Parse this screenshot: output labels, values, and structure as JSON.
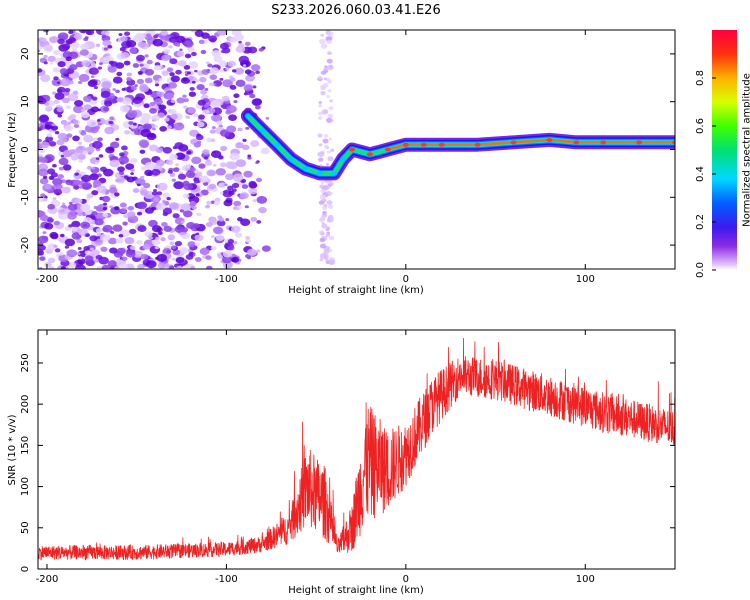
{
  "title": "S233.2026.060.03.41.E26",
  "chart_data": [
    {
      "type": "heatmap",
      "name": "spectrogram",
      "xlabel": "Height of straight line (km)",
      "ylabel": "Frequency (Hz)",
      "xlim": [
        -205,
        150
      ],
      "ylim": [
        -25,
        25
      ],
      "xticks": [
        -200,
        -100,
        0,
        100
      ],
      "yticks": [
        -20,
        -10,
        0,
        10,
        20
      ],
      "colorbar": {
        "label": "Normalized spectral amplitude",
        "range": [
          0,
          1
        ],
        "ticks": [
          0.0,
          0.2,
          0.4,
          0.6,
          0.8
        ]
      },
      "noise_region_km": [
        -205,
        -75
      ],
      "ridge": [
        {
          "x": -88,
          "f": 7
        },
        {
          "x": -80,
          "f": 4
        },
        {
          "x": -72,
          "f": 1
        },
        {
          "x": -64,
          "f": -2
        },
        {
          "x": -56,
          "f": -4
        },
        {
          "x": -48,
          "f": -5
        },
        {
          "x": -40,
          "f": -5
        },
        {
          "x": -35,
          "f": -2
        },
        {
          "x": -30,
          "f": 0
        },
        {
          "x": -20,
          "f": -1
        },
        {
          "x": -10,
          "f": 0
        },
        {
          "x": 0,
          "f": 1
        },
        {
          "x": 10,
          "f": 1
        },
        {
          "x": 20,
          "f": 1
        },
        {
          "x": 40,
          "f": 1
        },
        {
          "x": 60,
          "f": 1.5
        },
        {
          "x": 80,
          "f": 2
        },
        {
          "x": 95,
          "f": 1.5
        },
        {
          "x": 110,
          "f": 1.5
        },
        {
          "x": 130,
          "f": 1.5
        },
        {
          "x": 150,
          "f": 1.5
        }
      ]
    },
    {
      "type": "line",
      "name": "snr",
      "xlabel": "Height of straight line (km)",
      "ylabel": "SNR (10 * v/v)",
      "xlim": [
        -205,
        150
      ],
      "ylim": [
        0,
        290
      ],
      "xticks": [
        -200,
        -100,
        0,
        100
      ],
      "yticks": [
        0,
        50,
        100,
        150,
        200,
        250
      ],
      "color": "#ee2222",
      "envelope": [
        {
          "x": -205,
          "y": 20,
          "spread": 18
        },
        {
          "x": -150,
          "y": 20,
          "spread": 18
        },
        {
          "x": -100,
          "y": 24,
          "spread": 18
        },
        {
          "x": -80,
          "y": 30,
          "spread": 20
        },
        {
          "x": -65,
          "y": 50,
          "spread": 40
        },
        {
          "x": -55,
          "y": 100,
          "spread": 100
        },
        {
          "x": -45,
          "y": 80,
          "spread": 90
        },
        {
          "x": -38,
          "y": 25,
          "spread": 20
        },
        {
          "x": -30,
          "y": 50,
          "spread": 60
        },
        {
          "x": -22,
          "y": 130,
          "spread": 150
        },
        {
          "x": -10,
          "y": 120,
          "spread": 100
        },
        {
          "x": 0,
          "y": 140,
          "spread": 80
        },
        {
          "x": 15,
          "y": 200,
          "spread": 70
        },
        {
          "x": 30,
          "y": 235,
          "spread": 50
        },
        {
          "x": 50,
          "y": 230,
          "spread": 50
        },
        {
          "x": 80,
          "y": 210,
          "spread": 50
        },
        {
          "x": 110,
          "y": 190,
          "spread": 50
        },
        {
          "x": 150,
          "y": 170,
          "spread": 45
        }
      ]
    }
  ]
}
